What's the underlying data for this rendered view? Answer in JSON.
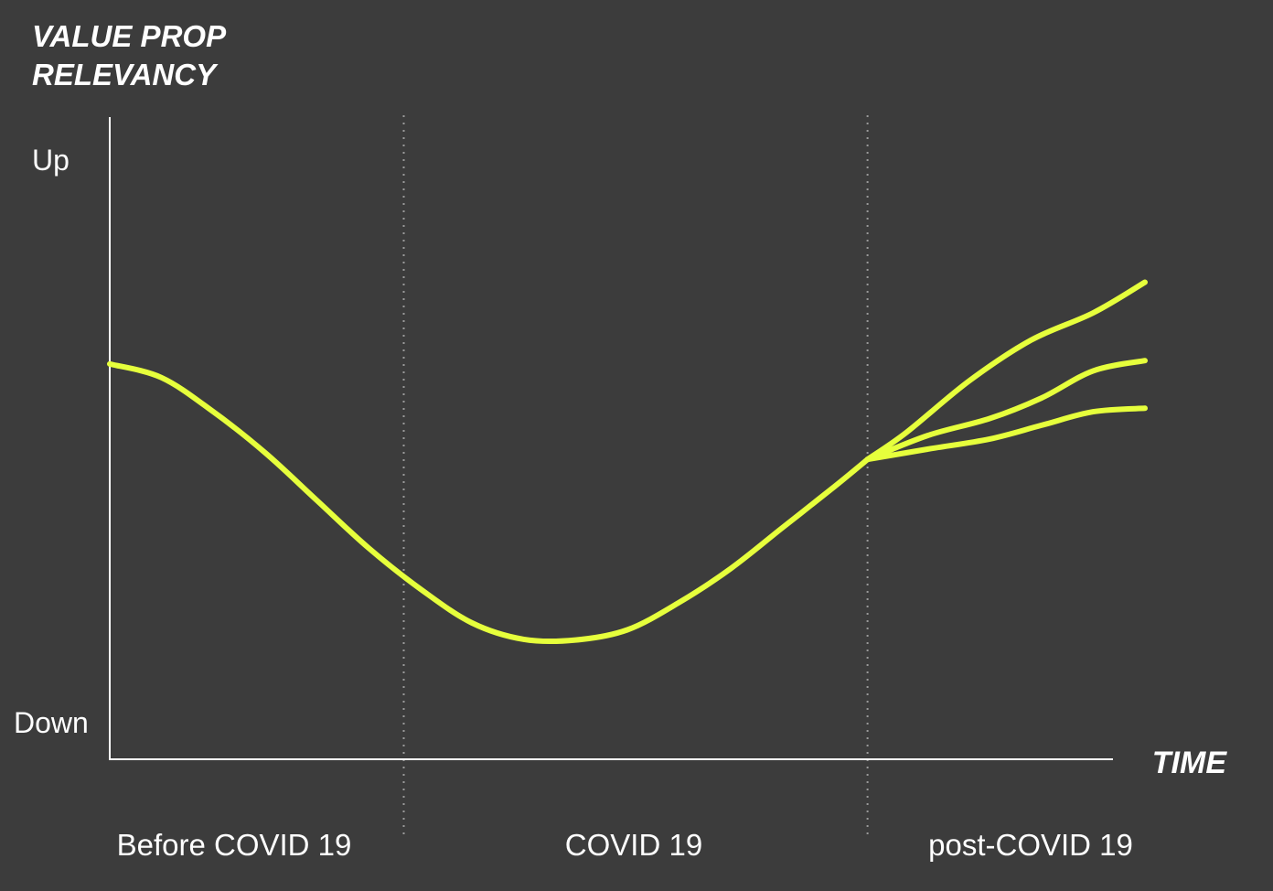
{
  "chart_data": {
    "type": "line",
    "ylabel_lines": [
      "VALUE PROP",
      "RELEVANCY"
    ],
    "xlabel": "TIME",
    "ytick_labels": {
      "top": "Up",
      "bottom": "Down"
    },
    "regions": [
      {
        "label": "Before COVID 19"
      },
      {
        "label": "COVID 19"
      },
      {
        "label": "post-COVID 19"
      }
    ],
    "xlim": [
      0,
      100
    ],
    "ylim": [
      0,
      100
    ],
    "region_boundaries": [
      28.4,
      73.2
    ],
    "grid": false,
    "colors": {
      "background": "#3c3c3c",
      "axis": "#ffffff",
      "line": "#e6ff3c",
      "divider": "#9a9a9a"
    },
    "series": [
      {
        "values": [
          [
            0,
            58
          ],
          [
            5,
            56
          ],
          [
            10,
            51
          ],
          [
            15,
            45
          ],
          [
            20,
            38
          ],
          [
            25,
            31
          ],
          [
            30,
            25
          ],
          [
            35,
            20
          ],
          [
            40,
            17.6
          ],
          [
            45,
            17.5
          ],
          [
            50,
            19
          ],
          [
            55,
            23
          ],
          [
            60,
            28
          ],
          [
            65,
            34
          ],
          [
            70,
            40
          ],
          [
            73.2,
            44
          ]
        ]
      },
      {
        "values": [
          [
            73.2,
            44
          ],
          [
            77,
            48
          ],
          [
            83,
            55.5
          ],
          [
            89,
            61.5
          ],
          [
            95,
            65.5
          ],
          [
            100,
            70
          ]
        ]
      },
      {
        "values": [
          [
            73.2,
            44
          ],
          [
            79,
            47.5
          ],
          [
            85,
            50
          ],
          [
            90,
            53
          ],
          [
            95,
            57
          ],
          [
            100,
            58.5
          ]
        ]
      },
      {
        "values": [
          [
            73.2,
            44
          ],
          [
            79,
            45.5
          ],
          [
            85,
            47
          ],
          [
            90,
            49
          ],
          [
            95,
            51
          ],
          [
            100,
            51.5
          ]
        ]
      }
    ]
  }
}
